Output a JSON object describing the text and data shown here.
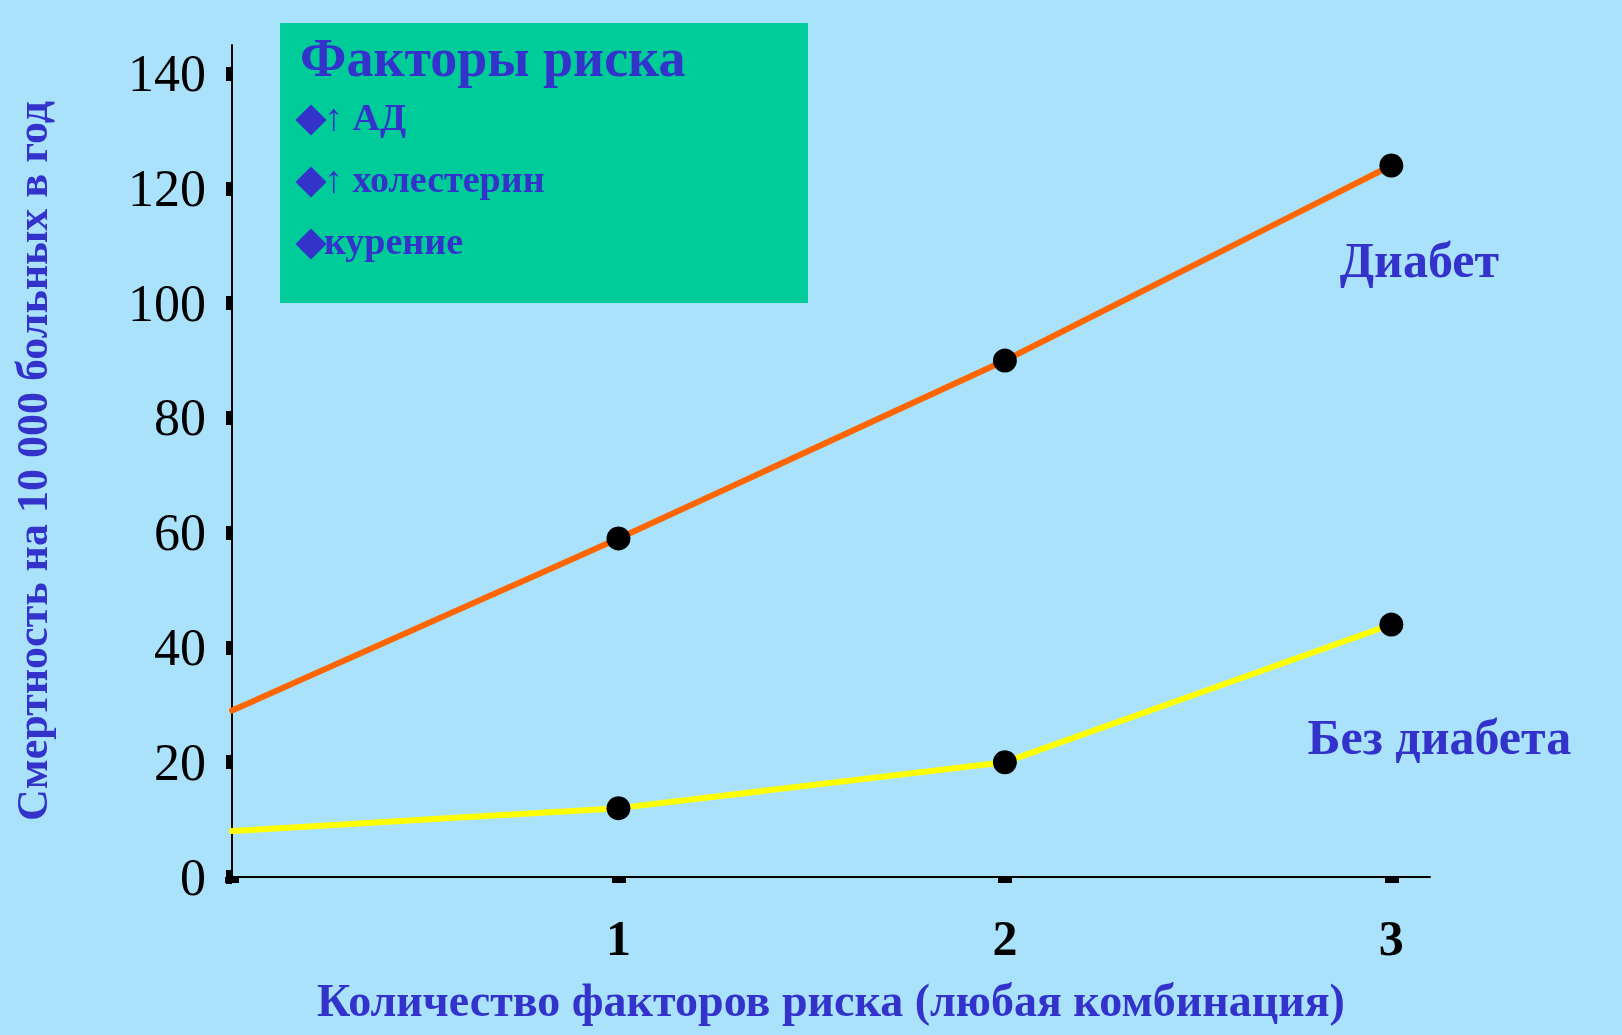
{
  "chart_data": {
    "type": "line",
    "xlabel": "Количество факторов риска (любая комбинация)",
    "ylabel": "Смертность на 10 000 больных в год",
    "annotations": [
      "Факторы риска",
      "↑ АД",
      "↑ холестерин",
      "курение"
    ],
    "x": [
      0,
      1,
      2,
      3
    ],
    "series": [
      {
        "name": "Диабет",
        "color": "#ff6600",
        "values": [
          29,
          59,
          90,
          124
        ]
      },
      {
        "name": "Без диабета",
        "color": "#ffff00",
        "values": [
          8,
          12,
          20,
          44
        ]
      }
    ],
    "xlim": [
      0,
      3.1
    ],
    "xticks": [
      {
        "value": 0,
        "label": null
      },
      1,
      2,
      3
    ],
    "ylim": [
      0,
      145
    ],
    "yticks": [
      0,
      20,
      40,
      60,
      80,
      100,
      120,
      140
    ],
    "grid": false,
    "legend": false,
    "marker": "circle",
    "line_style": "solid"
  }
}
